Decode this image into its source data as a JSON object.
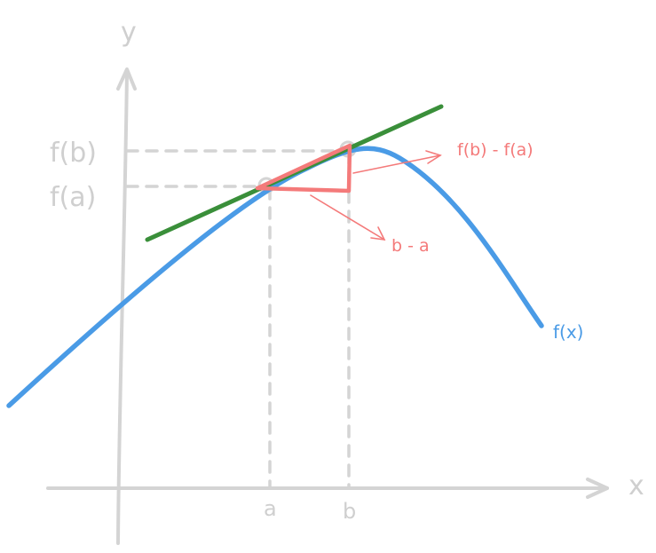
{
  "labels": {
    "x_axis": "x",
    "y_axis": "y",
    "tick_a": "a",
    "tick_b": "b",
    "f_of_b": "f(b)",
    "f_of_a": "f(a)",
    "curve": "f(x)",
    "rise": "f(b) - f(a)",
    "run": "b - a"
  },
  "colors": {
    "axis": "#d4d4d4",
    "guide": "#d4d4d4",
    "curve": "#4a9be6",
    "tangent": "#3a8f3a",
    "triangle": "#f47a7a"
  }
}
